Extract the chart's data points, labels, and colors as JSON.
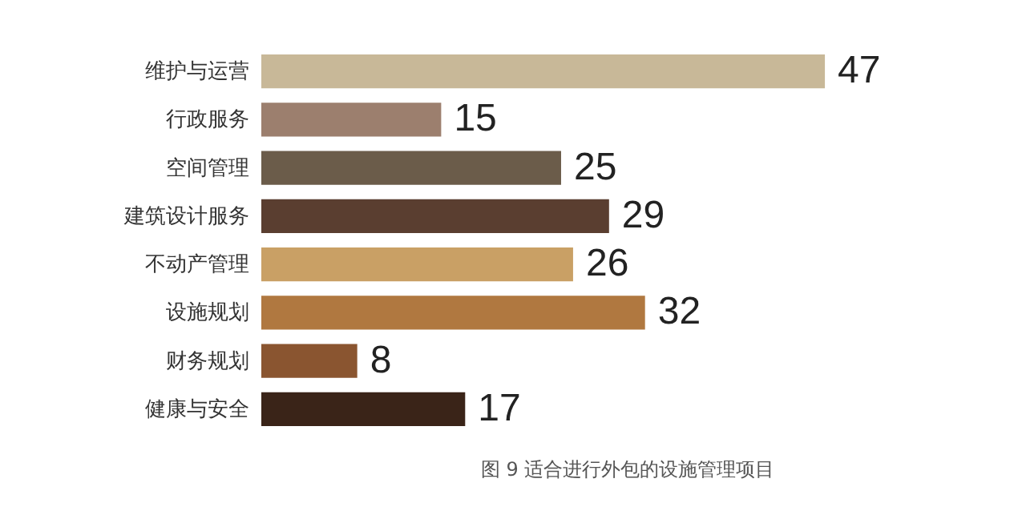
{
  "chart_data": {
    "type": "bar",
    "orientation": "horizontal",
    "title": "图 9  适合进行外包的设施管理项目",
    "categories": [
      "维护与运营",
      "行政服务",
      "空间管理",
      "建筑设计服务",
      "不动产管理",
      "设施规划",
      "财务规划",
      "健康与安全"
    ],
    "values": [
      47,
      15,
      25,
      29,
      26,
      32,
      8,
      17
    ],
    "colors": [
      "#c8b898",
      "#9c7f6e",
      "#6b5c4a",
      "#5a3e30",
      "#c9a065",
      "#b07840",
      "#8a5530",
      "#3a2418"
    ],
    "data_labels": true
  }
}
